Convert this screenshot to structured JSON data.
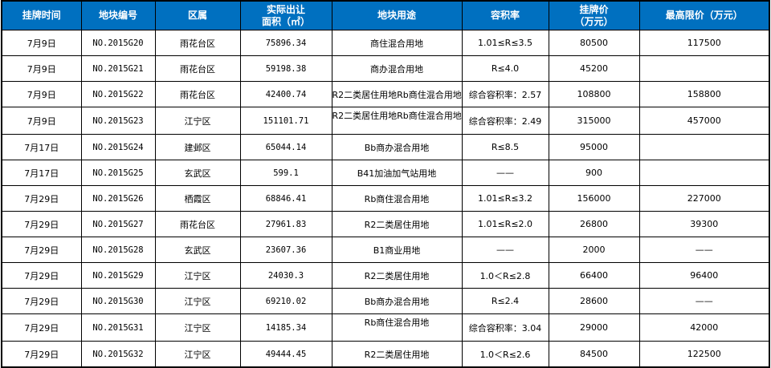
{
  "header_color": "#0070c0",
  "columns": [
    "挂牌时间",
    "地块编号",
    "区属",
    "实际出让面积（㎡）",
    "地块用途",
    "容积率",
    "挂牌价（万元）",
    "最高限价（万元）"
  ],
  "columns_display": [
    [
      "挂牌时间"
    ],
    [
      "地块编号"
    ],
    [
      "区属"
    ],
    [
      "实际出让",
      "面积（㎡）"
    ],
    [
      "地块用途"
    ],
    [
      "容积率"
    ],
    [
      "挂牌价",
      "（万元）"
    ],
    [
      "最高限价（万元）"
    ]
  ],
  "rows": [
    {
      "date": "7月9日",
      "code": "NO.2015G20",
      "district": "雨花台区",
      "area": "75896.34",
      "use": "商住混合用地",
      "far": "1.01≤R≤3.5",
      "price": "80500",
      "max_price": "117500"
    },
    {
      "date": "7月9日",
      "code": "NO.2015G21",
      "district": "雨花台区",
      "area": "59198.38",
      "use": "商办混合用地",
      "far": "R≤4.0",
      "price": "45200",
      "max_price": ""
    },
    {
      "date": "7月9日",
      "code": "NO.2015G22",
      "district": "雨花台区",
      "area": "42400.74",
      "use": "R2二类居住用地Rb商住混合用地",
      "far": "综合容积率：2.57",
      "price": "108800",
      "max_price": "158800"
    },
    {
      "date": "7月9日",
      "code": "NO.2015G23",
      "district": "江宁区",
      "area": "151101.71",
      "use": "R2二类居住用地Rb商住混合用地",
      "far": "综合容积率：2.49",
      "price": "315000",
      "max_price": "457000"
    },
    {
      "date": "7月17日",
      "code": "NO.2015G24",
      "district": "建邺区",
      "area": "65044.14",
      "use": "Bb商办混合用地",
      "far": "R≤8.5",
      "price": "95000",
      "max_price": ""
    },
    {
      "date": "7月17日",
      "code": "NO.2015G25",
      "district": "玄武区",
      "area": "599.1",
      "use": "B41加油加气站用地",
      "far": "——",
      "price": "900",
      "max_price": ""
    },
    {
      "date": "7月29日",
      "code": "NO.2015G26",
      "district": "栖霞区",
      "area": "68846.41",
      "use": "Rb商住混合用地",
      "far": "1.01≤R≤3.2",
      "price": "156000",
      "max_price": "227000"
    },
    {
      "date": "7月29日",
      "code": "NO.2015G27",
      "district": "雨花台区",
      "area": "27961.83",
      "use": "R2二类居住用地",
      "far": "1.01≤R≤2.0",
      "price": "26800",
      "max_price": "39300"
    },
    {
      "date": "7月29日",
      "code": "NO.2015G28",
      "district": "玄武区",
      "area": "23607.36",
      "use": "B1商业用地",
      "far": "——",
      "price": "2000",
      "max_price": "——"
    },
    {
      "date": "7月29日",
      "code": "NO.2015G29",
      "district": "江宁区",
      "area": "24030.3",
      "use": "R2二类居住用地",
      "far": "1.0＜R≤2.8",
      "price": "66400",
      "max_price": "96400"
    },
    {
      "date": "7月29日",
      "code": "NO.2015G30",
      "district": "江宁区",
      "area": "69210.02",
      "use": "Bb商办混合用地",
      "far": "R≤2.4",
      "price": "28600",
      "max_price": "——"
    },
    {
      "date": "7月29日",
      "code": "NO.2015G31",
      "district": "江宁区",
      "area": "14185.34",
      "use": "Rb商住混合用地",
      "far": "综合容积率：3.04",
      "price": "29000",
      "max_price": "42000"
    },
    {
      "date": "7月29日",
      "code": "NO.2015G32",
      "district": "江宁区",
      "area": "49444.45",
      "use": "R2二类居住用地",
      "far": "1.0＜R≤2.6",
      "price": "84500",
      "max_price": "122500"
    }
  ]
}
